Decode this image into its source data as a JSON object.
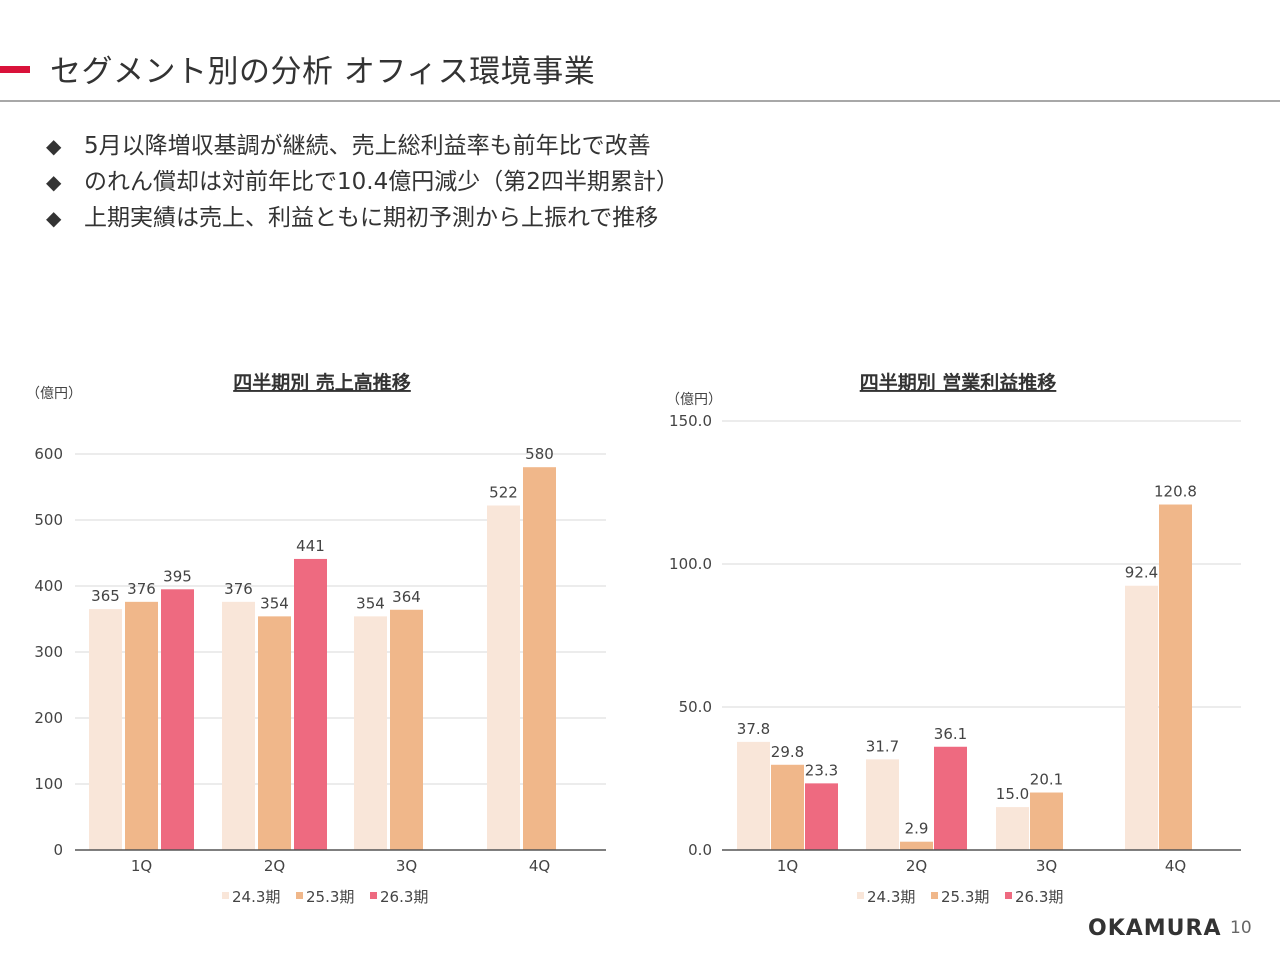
{
  "header": {
    "title": "セグメント別の分析 オフィス環境事業",
    "accent_color": "#d9123a"
  },
  "bullets": [
    "5月以降増収基調が継続、売上総利益率も前年比で改善",
    "のれん償却は対前年比で10.4億円減少（第2四半期累計）",
    "上期実績は売上、利益ともに期初予測から上振れで推移"
  ],
  "bullet_marker": "◆",
  "chart_data": [
    {
      "type": "bar",
      "title": "四半期別 売上高推移",
      "ylabel": "（億円）",
      "xlabel": "",
      "ylim": [
        0,
        600
      ],
      "yticks": [
        "0",
        "100",
        "200",
        "300",
        "400",
        "500",
        "600"
      ],
      "ytick_values": [
        0,
        100,
        200,
        300,
        400,
        500,
        600
      ],
      "categories": [
        "1Q",
        "2Q",
        "3Q",
        "4Q"
      ],
      "series": [
        {
          "name": "24.3期",
          "color": "#f9e6d9",
          "values": [
            365,
            376,
            354,
            522
          ],
          "labels": [
            "365",
            "376",
            "354",
            "522"
          ]
        },
        {
          "name": "25.3期",
          "color": "#f0b78a",
          "values": [
            376,
            354,
            364,
            580
          ],
          "labels": [
            "376",
            "354",
            "364",
            "580"
          ]
        },
        {
          "name": "26.3期",
          "color": "#ee6a80",
          "values": [
            395,
            441,
            null,
            null
          ],
          "labels": [
            "395",
            "441",
            "",
            ""
          ]
        }
      ],
      "legend_position": "bottom"
    },
    {
      "type": "bar",
      "title": "四半期別 営業利益推移",
      "ylabel": "（億円）",
      "xlabel": "",
      "ylim": [
        0,
        150
      ],
      "yticks": [
        "0.0",
        "50.0",
        "100.0",
        "150.0"
      ],
      "ytick_values": [
        0,
        50,
        100,
        150
      ],
      "categories": [
        "1Q",
        "2Q",
        "3Q",
        "4Q"
      ],
      "series": [
        {
          "name": "24.3期",
          "color": "#f9e6d9",
          "values": [
            37.8,
            31.7,
            15.0,
            92.4
          ],
          "labels": [
            "37.8",
            "31.7",
            "15.0",
            "92.4"
          ]
        },
        {
          "name": "25.3期",
          "color": "#f0b78a",
          "values": [
            29.8,
            2.9,
            20.1,
            120.8
          ],
          "labels": [
            "29.8",
            "2.9",
            "20.1",
            "120.8"
          ]
        },
        {
          "name": "26.3期",
          "color": "#ee6a80",
          "values": [
            23.3,
            36.1,
            null,
            null
          ],
          "labels": [
            "23.3",
            "36.1",
            "",
            ""
          ]
        }
      ],
      "legend_position": "bottom"
    }
  ],
  "footer": {
    "logo": "OKAMURA",
    "page_number": "10"
  }
}
